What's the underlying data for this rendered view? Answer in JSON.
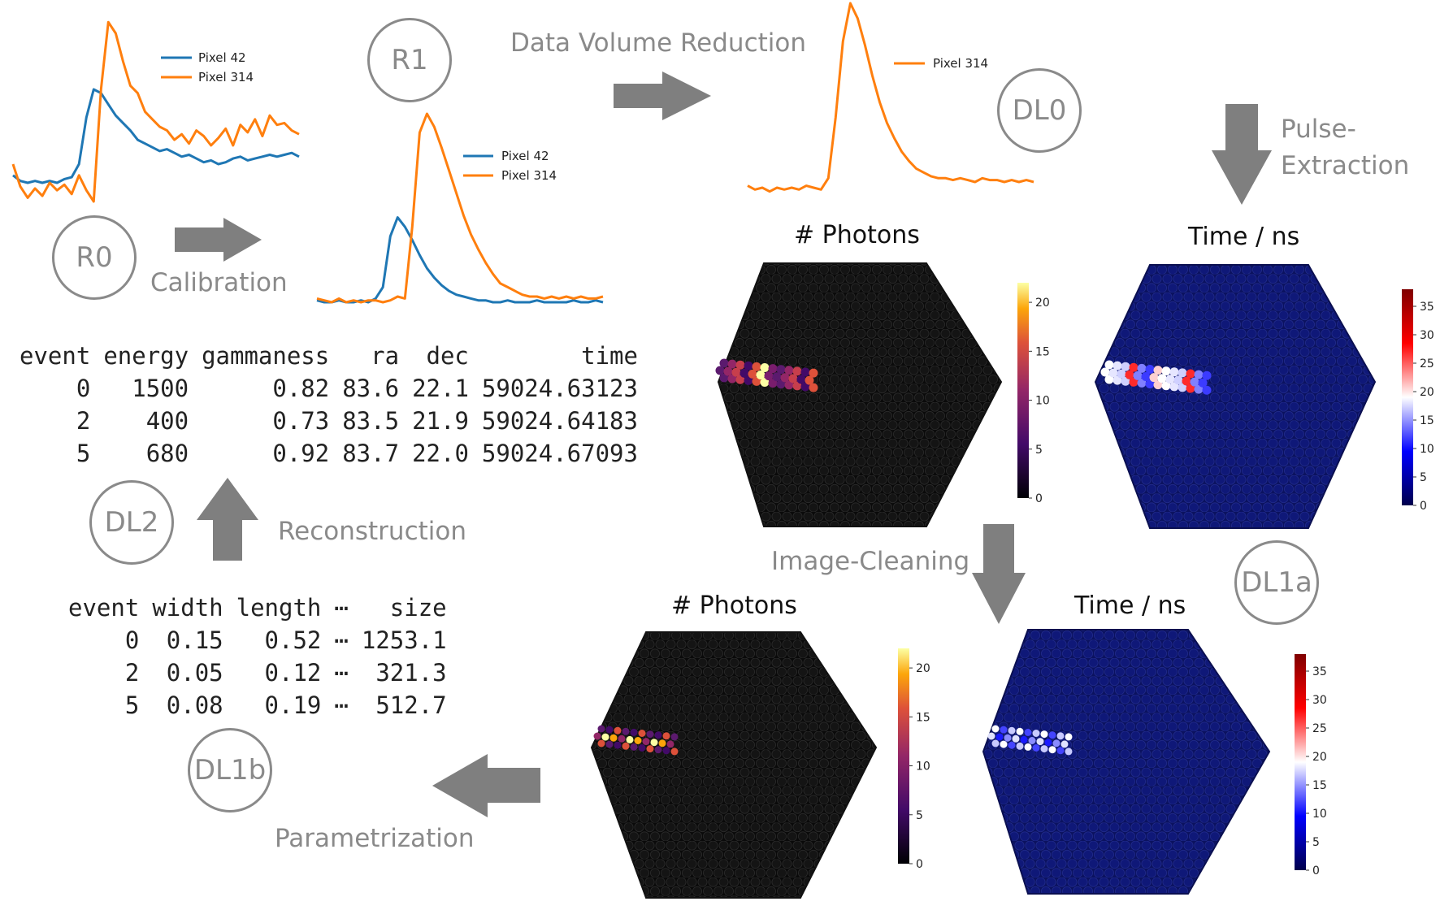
{
  "stages": {
    "r0": "R0",
    "r1": "R1",
    "dl0": "DL0",
    "dl1a": "DL1a",
    "dl1b": "DL1b",
    "dl2": "DL2"
  },
  "steps": {
    "calibration": "Calibration",
    "data_volume_reduction": "Data Volume Reduction",
    "pulse_extraction_1": "Pulse-",
    "pulse_extraction_2": "Extraction",
    "image_cleaning": "Image-Cleaning",
    "parametrization": "Parametrization",
    "reconstruction": "Reconstruction"
  },
  "legends": {
    "pixel42": "Pixel 42",
    "pixel314": "Pixel 314"
  },
  "panel_titles": {
    "photons": "# Photons",
    "time": "Time / ns"
  },
  "colorbars": {
    "photons_ticks": [
      "0",
      "5",
      "10",
      "15",
      "20"
    ],
    "time_ticks": [
      "0",
      "5",
      "10",
      "15",
      "20",
      "25",
      "30",
      "35"
    ]
  },
  "colors": {
    "pixel42": "#1f77b4",
    "pixel314": "#ff7f0e",
    "arrow": "#7f7f7f",
    "stage_text": "#8a8a8a",
    "camera_dark": "#0a0a0a",
    "camera_navy": "#0e1670"
  },
  "dl2_table": {
    "columns": [
      "event",
      "energy",
      "gammaness",
      "ra",
      "dec",
      "time"
    ],
    "rows": [
      [
        "0",
        "1500",
        "0.82",
        "83.6",
        "22.1",
        "59024.63123"
      ],
      [
        "2",
        "400",
        "0.73",
        "83.5",
        "21.9",
        "59024.64183"
      ],
      [
        "5",
        "680",
        "0.92",
        "83.7",
        "22.0",
        "59024.67093"
      ]
    ]
  },
  "dl1b_table": {
    "columns": [
      "event",
      "width",
      "length",
      "⋯",
      "size"
    ],
    "rows": [
      [
        "0",
        "0.15",
        "0.52",
        "⋯",
        "1253.1"
      ],
      [
        "2",
        "0.05",
        "0.12",
        "⋯",
        "321.3"
      ],
      [
        "5",
        "0.08",
        "0.19",
        "⋯",
        "512.7"
      ]
    ]
  },
  "chart_data": [
    {
      "type": "line",
      "panel": "R0",
      "legend": [
        "Pixel 42",
        "Pixel 314"
      ],
      "x": [
        0,
        1,
        2,
        3,
        4,
        5,
        6,
        7,
        8,
        9,
        10,
        11,
        12,
        13,
        14,
        15,
        16,
        17,
        18,
        19,
        20,
        21,
        22,
        23,
        24,
        25,
        26,
        27,
        28,
        29,
        30,
        31,
        32,
        33,
        34,
        35,
        36,
        37,
        38,
        39
      ],
      "series": [
        {
          "name": "Pixel 42",
          "values": [
            14,
            11,
            10,
            11,
            10,
            11,
            10,
            12,
            13,
            20,
            45,
            60,
            58,
            52,
            46,
            42,
            38,
            33,
            31,
            29,
            27,
            28,
            26,
            24,
            25,
            23,
            21,
            22,
            20,
            21,
            23,
            24,
            22,
            23,
            24,
            25,
            24,
            25,
            26,
            24
          ]
        },
        {
          "name": "Pixel 314",
          "values": [
            20,
            8,
            2,
            7,
            3,
            10,
            6,
            9,
            4,
            14,
            6,
            0,
            60,
            96,
            90,
            75,
            62,
            58,
            48,
            44,
            40,
            38,
            33,
            36,
            31,
            38,
            35,
            30,
            34,
            39,
            30,
            41,
            37,
            44,
            35,
            46,
            41,
            42,
            38,
            36
          ]
        }
      ]
    },
    {
      "type": "line",
      "panel": "R1",
      "legend": [
        "Pixel 42",
        "Pixel 314"
      ],
      "x": [
        0,
        1,
        2,
        3,
        4,
        5,
        6,
        7,
        8,
        9,
        10,
        11,
        12,
        13,
        14,
        15,
        16,
        17,
        18,
        19,
        20,
        21,
        22,
        23,
        24,
        25,
        26,
        27,
        28,
        29,
        30,
        31,
        32,
        33,
        34,
        35,
        36,
        37,
        38,
        39
      ],
      "series": [
        {
          "name": "Pixel 42",
          "values": [
            1,
            0,
            0,
            1,
            0,
            0,
            1,
            0,
            2,
            8,
            35,
            45,
            40,
            33,
            25,
            18,
            13,
            9,
            6,
            4,
            3,
            2,
            1,
            1,
            0,
            0,
            1,
            0,
            0,
            0,
            1,
            0,
            0,
            0,
            0,
            1,
            0,
            0,
            1,
            0
          ]
        },
        {
          "name": "Pixel 314",
          "values": [
            2,
            1,
            0,
            2,
            0,
            1,
            0,
            1,
            1,
            0,
            1,
            3,
            2,
            40,
            90,
            100,
            93,
            82,
            70,
            58,
            46,
            36,
            28,
            21,
            15,
            10,
            8,
            6,
            4,
            3,
            3,
            2,
            3,
            2,
            3,
            2,
            3,
            2,
            2,
            3
          ]
        }
      ]
    },
    {
      "type": "line",
      "panel": "DL0",
      "legend": [
        "Pixel 314"
      ],
      "x": [
        0,
        1,
        2,
        3,
        4,
        5,
        6,
        7,
        8,
        9,
        10,
        11,
        12,
        13,
        14,
        15,
        16,
        17,
        18,
        19,
        20,
        21,
        22,
        23,
        24,
        25,
        26,
        27,
        28,
        29,
        30,
        31,
        32,
        33,
        34,
        35,
        36,
        37,
        38,
        39
      ],
      "series": [
        {
          "name": "Pixel 314",
          "values": [
            4,
            2,
            3,
            1,
            3,
            2,
            3,
            2,
            4,
            3,
            2,
            8,
            40,
            80,
            100,
            92,
            78,
            62,
            48,
            37,
            29,
            22,
            17,
            13,
            11,
            9,
            8,
            8,
            7,
            8,
            7,
            6,
            8,
            7,
            7,
            6,
            7,
            6,
            7,
            6
          ]
        }
      ]
    }
  ]
}
